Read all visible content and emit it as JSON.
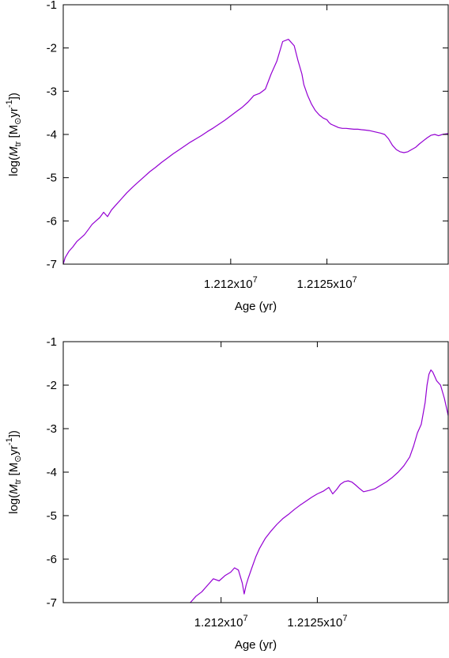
{
  "colors": {
    "series": "#9400d3",
    "axes": "#000000",
    "background": "#ffffff"
  },
  "chart_data": [
    {
      "type": "line",
      "title": "",
      "xlabel": "Age (yr)",
      "ylabel": {
        "base": "log(",
        "mdot": "M",
        "sub": "tr",
        "mid": " [M",
        "sun": "⊙",
        "unit": "yr",
        "exp": "-1",
        "end": "])"
      },
      "xlim": [
        12111300,
        12131300
      ],
      "ylim": [
        -7,
        -1
      ],
      "yticks": [
        -7,
        -6,
        -5,
        -4,
        -3,
        -2,
        -1
      ],
      "ytick_labels": [
        "-7",
        "-6",
        "-5",
        "-4",
        "-3",
        "-2",
        "-1"
      ],
      "xticks": [
        {
          "value": 12120000,
          "mant": "1.212x10",
          "exp": "7"
        },
        {
          "value": 12125000,
          "mant": "1.2125x10",
          "exp": "7"
        }
      ],
      "grid": false,
      "series": [
        {
          "color": "#9400d3",
          "x": [
            12111300,
            12111400,
            12111600,
            12111800,
            12112000,
            12112200,
            12112400,
            12112600,
            12112800,
            12113000,
            12113200,
            12113400,
            12113600,
            12113800,
            12114000,
            12114300,
            12114600,
            12114900,
            12115200,
            12115500,
            12115800,
            12116100,
            12116400,
            12116700,
            12117000,
            12117300,
            12117600,
            12117900,
            12118200,
            12118500,
            12118800,
            12119100,
            12119400,
            12119700,
            12120000,
            12120300,
            12120600,
            12120900,
            12121200,
            12121500,
            12121800,
            12122100,
            12122400,
            12122700,
            12123000,
            12123300,
            12123500,
            12123700,
            12123800,
            12124000,
            12124200,
            12124400,
            12124600,
            12124800,
            12125000,
            12125100,
            12125200,
            12125300,
            12125400,
            12125500,
            12125600,
            12125700,
            12125800,
            12126000,
            12126200,
            12126400,
            12126600,
            12126800,
            12127000,
            12127200,
            12127400,
            12127600,
            12127800,
            12128000,
            12128200,
            12128400,
            12128600,
            12128800,
            12129000,
            12129200,
            12129400,
            12129600,
            12129800,
            12130000,
            12130200,
            12130400,
            12130600,
            12130800,
            12131000,
            12131300
          ],
          "y": [
            -7.0,
            -6.85,
            -6.7,
            -6.6,
            -6.48,
            -6.4,
            -6.32,
            -6.2,
            -6.08,
            -6.0,
            -5.92,
            -5.8,
            -5.9,
            -5.75,
            -5.65,
            -5.5,
            -5.35,
            -5.22,
            -5.1,
            -4.98,
            -4.86,
            -4.76,
            -4.65,
            -4.55,
            -4.45,
            -4.36,
            -4.27,
            -4.18,
            -4.1,
            -4.02,
            -3.93,
            -3.85,
            -3.76,
            -3.67,
            -3.57,
            -3.47,
            -3.37,
            -3.25,
            -3.1,
            -3.05,
            -2.95,
            -2.6,
            -2.3,
            -1.85,
            -1.8,
            -1.95,
            -2.3,
            -2.6,
            -2.85,
            -3.1,
            -3.3,
            -3.45,
            -3.55,
            -3.62,
            -3.66,
            -3.72,
            -3.76,
            -3.78,
            -3.8,
            -3.82,
            -3.84,
            -3.85,
            -3.86,
            -3.86,
            -3.87,
            -3.88,
            -3.88,
            -3.89,
            -3.9,
            -3.91,
            -3.93,
            -3.95,
            -3.97,
            -4.0,
            -4.1,
            -4.25,
            -4.35,
            -4.4,
            -4.42,
            -4.4,
            -4.35,
            -4.3,
            -4.22,
            -4.15,
            -4.08,
            -4.02,
            -4.0,
            -4.03,
            -4.0,
            -3.98
          ]
        }
      ]
    },
    {
      "type": "line",
      "title": "",
      "xlabel": "Age (yr)",
      "ylabel": {
        "base": "log(",
        "mdot": "M",
        "sub": "tr",
        "mid": " [M",
        "sun": "⊙",
        "unit": "yr",
        "exp": "-1",
        "end": "])"
      },
      "xlim": [
        12111800,
        12131800
      ],
      "ylim": [
        -7,
        -1
      ],
      "yticks": [
        -7,
        -6,
        -5,
        -4,
        -3,
        -2,
        -1
      ],
      "ytick_labels": [
        "-7",
        "-6",
        "-5",
        "-4",
        "-3",
        "-2",
        "-1"
      ],
      "xticks": [
        {
          "value": 12120000,
          "mant": "1.212x10",
          "exp": "7"
        },
        {
          "value": 12125000,
          "mant": "1.2125x10",
          "exp": "7"
        }
      ],
      "grid": false,
      "series": [
        {
          "color": "#9400d3",
          "x": [
            12118400,
            12118700,
            12119000,
            12119300,
            12119600,
            12119900,
            12120200,
            12120500,
            12120700,
            12120900,
            12121100,
            12121200,
            12121300,
            12121400,
            12121600,
            12121800,
            12122000,
            12122300,
            12122600,
            12122900,
            12123200,
            12123500,
            12123800,
            12124100,
            12124400,
            12124700,
            12125000,
            12125300,
            12125600,
            12125800,
            12126000,
            12126200,
            12126400,
            12126600,
            12126800,
            12127000,
            12127200,
            12127400,
            12127700,
            12128000,
            12128300,
            12128600,
            12128900,
            12129200,
            12129500,
            12129800,
            12130000,
            12130200,
            12130400,
            12130600,
            12130700,
            12130800,
            12130900,
            12131000,
            12131200,
            12131400,
            12131600,
            12131800
          ],
          "y": [
            -7.0,
            -6.85,
            -6.75,
            -6.6,
            -6.45,
            -6.5,
            -6.38,
            -6.3,
            -6.2,
            -6.25,
            -6.55,
            -6.8,
            -6.6,
            -6.45,
            -6.2,
            -5.95,
            -5.75,
            -5.52,
            -5.35,
            -5.2,
            -5.07,
            -4.97,
            -4.86,
            -4.76,
            -4.67,
            -4.58,
            -4.5,
            -4.44,
            -4.35,
            -4.5,
            -4.4,
            -4.28,
            -4.22,
            -4.2,
            -4.23,
            -4.3,
            -4.38,
            -4.45,
            -4.42,
            -4.38,
            -4.3,
            -4.22,
            -4.12,
            -4.0,
            -3.85,
            -3.65,
            -3.4,
            -3.1,
            -2.9,
            -2.4,
            -2.0,
            -1.75,
            -1.65,
            -1.7,
            -1.9,
            -2.0,
            -2.3,
            -2.7
          ]
        }
      ]
    }
  ]
}
